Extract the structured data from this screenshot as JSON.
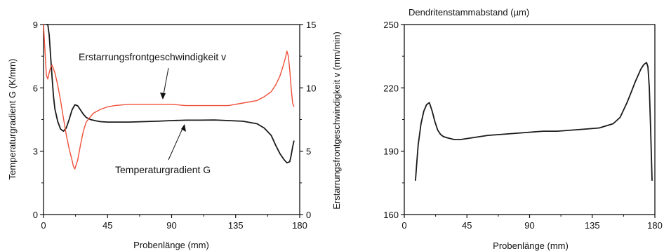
{
  "chart_data": [
    {
      "type": "line",
      "xlabel": "Probenlänge (mm)",
      "ylabel": "Temperaturgradient G (K/mm)",
      "y2label": "Erstarrungsfrontgeschwindigkeit v (mm/min)",
      "xlim": [
        0,
        180
      ],
      "ylim": [
        0,
        9
      ],
      "y2lim": [
        0,
        15
      ],
      "x_ticks": [
        "0",
        "45",
        "90",
        "135",
        "180"
      ],
      "y_ticks": [
        "0",
        "3",
        "6",
        "9"
      ],
      "y2_ticks": [
        "0",
        "5",
        "10",
        "15"
      ],
      "grid": false,
      "legend": "none",
      "annotations": [
        "Erstarrungsfrontgeschwindigkeit v",
        "Temperaturgradient G"
      ],
      "series": [
        {
          "axis": "left",
          "color": "#1a1a1a",
          "x": [
            2,
            3,
            4,
            5,
            6,
            7,
            8,
            10,
            12,
            14,
            16,
            18,
            20,
            22,
            24,
            26,
            28,
            30,
            33,
            36,
            40,
            45,
            50,
            60,
            70,
            80,
            90,
            100,
            110,
            120,
            130,
            140,
            150,
            155,
            160,
            163,
            166,
            169,
            171,
            173,
            174,
            175,
            176
          ],
          "y": [
            9,
            9,
            8.5,
            7.5,
            6.5,
            5.6,
            5.0,
            4.4,
            4.05,
            3.95,
            4.1,
            4.5,
            4.95,
            5.2,
            5.15,
            4.95,
            4.75,
            4.6,
            4.5,
            4.45,
            4.4,
            4.38,
            4.38,
            4.38,
            4.4,
            4.42,
            4.45,
            4.47,
            4.47,
            4.48,
            4.45,
            4.42,
            4.3,
            4.1,
            3.75,
            3.3,
            2.9,
            2.6,
            2.45,
            2.5,
            2.8,
            3.2,
            3.5
          ]
        },
        {
          "axis": "right",
          "color": "#f0503a",
          "x": [
            0,
            1,
            2,
            3,
            4,
            5,
            6,
            7,
            8,
            10,
            12,
            14,
            16,
            18,
            20,
            21,
            22,
            24,
            26,
            28,
            30,
            35,
            40,
            45,
            50,
            60,
            70,
            80,
            90,
            100,
            110,
            120,
            130,
            140,
            150,
            155,
            160,
            163,
            166,
            168,
            170,
            171,
            172,
            173,
            174,
            175,
            176
          ],
          "y": [
            15,
            13,
            11,
            10.7,
            11.2,
            11.6,
            11.8,
            11.5,
            11.2,
            10.2,
            9.0,
            7.6,
            6.3,
            5.2,
            4.3,
            3.8,
            3.6,
            4.3,
            5.5,
            6.6,
            7.3,
            8.0,
            8.3,
            8.5,
            8.6,
            8.7,
            8.7,
            8.7,
            8.7,
            8.6,
            8.6,
            8.6,
            8.6,
            8.8,
            9.0,
            9.3,
            9.7,
            10.2,
            10.9,
            11.6,
            12.4,
            12.9,
            12.5,
            11.4,
            10.0,
            8.8,
            8.5
          ]
        }
      ]
    },
    {
      "type": "line",
      "title": "Dendritenstammabstand (µm)",
      "xlabel": "Probenlänge (mm)",
      "ylabel": "",
      "xlim": [
        0,
        180
      ],
      "ylim": [
        160,
        250
      ],
      "x_ticks": [
        "0",
        "45",
        "90",
        "135",
        "180"
      ],
      "y_ticks": [
        "160",
        "190",
        "220",
        "250"
      ],
      "grid": false,
      "legend": "none",
      "series": [
        {
          "color": "#1a1a1a",
          "x": [
            8,
            9,
            10,
            12,
            14,
            16,
            18,
            20,
            22,
            24,
            26,
            28,
            30,
            33,
            36,
            40,
            45,
            50,
            60,
            70,
            80,
            90,
            100,
            110,
            120,
            130,
            140,
            150,
            155,
            160,
            163,
            166,
            168,
            170,
            172,
            174,
            175,
            176,
            177,
            178
          ],
          "y": [
            176,
            185,
            193,
            203,
            209,
            212,
            213,
            209,
            204,
            200,
            198,
            197,
            196.5,
            196,
            195.5,
            195.5,
            196,
            196.5,
            197.5,
            198,
            198.5,
            199,
            199.5,
            199.5,
            200,
            200.5,
            201,
            203,
            206,
            213,
            218,
            223,
            226,
            229,
            231,
            232,
            230,
            220,
            200,
            176
          ]
        }
      ]
    }
  ]
}
